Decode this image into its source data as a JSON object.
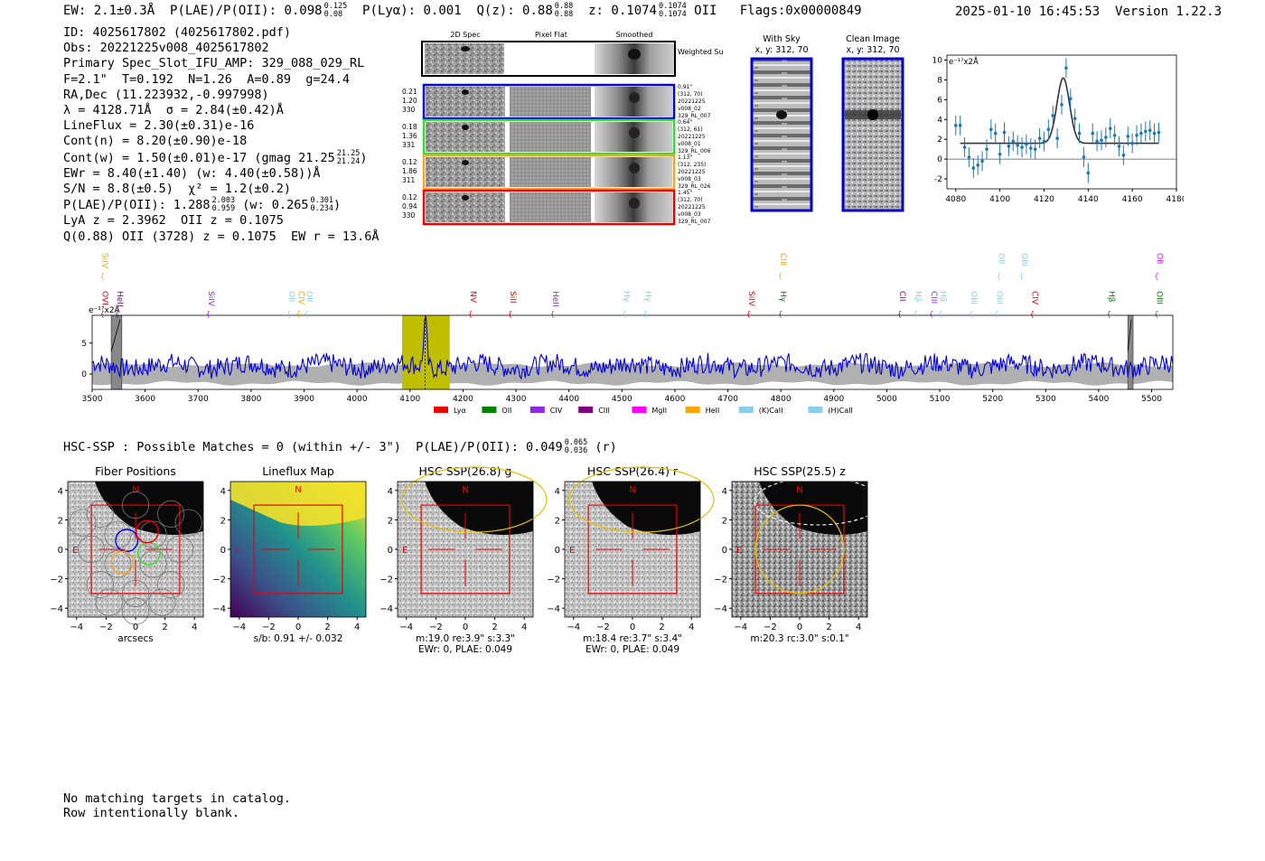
{
  "header": {
    "ew": "EW: 2.1±0.3Å",
    "plae_label": "P(LAE)/P(OII): 0.098",
    "plae_sup": "0.125",
    "plae_sub": "0.08",
    "plya": "P(Lyα): 0.001",
    "qz_label": "Q(z): 0.88",
    "qz_sup": "0.88",
    "qz_sub": "0.88",
    "z_label": "z: 0.1074",
    "z_sup": "0.1074",
    "z_sub": "0.1074",
    "z_line": "OII",
    "flags": "Flags:0x00000849",
    "timestamp": "2025-01-10 16:45:53",
    "version": "Version 1.22.3"
  },
  "info": {
    "id": "ID: 4025617802 (4025617802.pdf)",
    "obs": "Obs: 20221225v008_4025617802",
    "primary": "Primary Spec_Slot_IFU_AMP: 329_088_029_RL",
    "fit": "F=2.1\"  T=0.192  N=1.26  A=0.89  g=24.4",
    "radec": "RA,Dec (11.223932,-0.997998)",
    "lambda": "λ = 4128.71Å  σ = 2.84(±0.42)Å",
    "lineflux": "LineFlux = 2.30(±0.31)e-16",
    "contn": "Cont(n) = 8.20(±0.90)e-18",
    "contw": "Cont(w) = 1.50(±0.01)e-17 (gmag 21.25",
    "contw_sup": "21.25",
    "contw_sub": "21.24",
    "contw_end": ")",
    "ewr": "EWr = 8.40(±1.40) (w: 4.40(±0.58))Å",
    "sn": "S/N = 8.8(±0.5)  χ² = 1.2(±0.2)",
    "plae": "P(LAE)/P(OII): 1.288",
    "plae_sup": "2.003",
    "plae_sub": "0.959",
    "plae_w": "(w: 0.265",
    "plae_w_sup": "0.301",
    "plae_w_sub": "0.234",
    "plae_w_end": ")",
    "lya": "LyA z = 2.3962  OII z = 0.1075",
    "q": "Q(0.88) OII (3728) z = 0.1075  EW r = 13.6Å"
  },
  "cutouts": {
    "col_titles": [
      "2D Spec",
      "Pixel Flat",
      "Smoothed"
    ],
    "weighted_label": "Weighted Sum",
    "rows": [
      {
        "left": [
          "0.21",
          "1.20",
          "330"
        ],
        "right": [
          "0.91\"",
          "(312, 70)",
          "20221225",
          "v008_02",
          "329_RL_007"
        ],
        "color": "#0000ee"
      },
      {
        "left": [
          "0.18",
          "1.36",
          "331"
        ],
        "right": [
          "0.64\"",
          "(312, 61)",
          "20221225",
          "v008_01",
          "329_RL_006"
        ],
        "color": "#33dd33"
      },
      {
        "left": [
          "0.12",
          "1.86",
          "311"
        ],
        "right": [
          "1.13\"",
          "(312, 235)",
          "20221225",
          "v008_03",
          "329_RL_026"
        ],
        "color": "#f5a623"
      },
      {
        "left": [
          "0.12",
          "0.94",
          "330"
        ],
        "right": [
          "1.45\"",
          "(312, 70)",
          "20221225",
          "v008_03",
          "329_RL_007"
        ],
        "color": "#ee0000"
      }
    ]
  },
  "sky_panels": {
    "with_sky": {
      "title": "With Sky",
      "subtitle": "x, y: 312, 70"
    },
    "clean": {
      "title": "Clean Image",
      "subtitle": "x, y: 312, 70"
    }
  },
  "legend": {
    "items": [
      {
        "label": "Lyα",
        "color": "#ee0000"
      },
      {
        "label": "OII",
        "color": "#008000"
      },
      {
        "label": "CIV",
        "color": "#8a2be2"
      },
      {
        "label": "CIII",
        "color": "#800080"
      },
      {
        "label": "MgII",
        "color": "#ff00ff"
      },
      {
        "label": "HeII",
        "color": "#ffa500"
      },
      {
        "label": "(K)CaII",
        "color": "#87ceeb"
      },
      {
        "label": "(H)CaII",
        "color": "#87ceeb"
      }
    ]
  },
  "line_markers": [
    {
      "label": "OVI",
      "x": 3520,
      "color": "#ee0000",
      "row": 2
    },
    {
      "label": "HeII",
      "x": 3548,
      "color": "#800080",
      "row": 2
    },
    {
      "label": "SiIV",
      "x": 3520,
      "color": "#ffa500",
      "row": 1
    },
    {
      "label": "SiIV",
      "x": 3720,
      "color": "#8a2be2",
      "row": 2
    },
    {
      "label": "OII",
      "x": 3872,
      "color": "#87ceeb",
      "row": 2
    },
    {
      "label": "CIV",
      "x": 3890,
      "color": "#ffa500",
      "row": 2
    },
    {
      "label": "OII",
      "x": 3905,
      "color": "#87ceeb",
      "row": 2
    },
    {
      "label": "NV",
      "x": 4215,
      "color": "#ee0000",
      "row": 2
    },
    {
      "label": "SiII",
      "x": 4290,
      "color": "#ee0000",
      "row": 2
    },
    {
      "label": "HeII",
      "x": 4370,
      "color": "#8a2be2",
      "row": 2
    },
    {
      "label": "Hγ",
      "x": 4505,
      "color": "#87ceeb",
      "row": 2
    },
    {
      "label": "Hγ",
      "x": 4545,
      "color": "#87ceeb",
      "row": 2
    },
    {
      "label": "SiIV",
      "x": 4740,
      "color": "#ee0000",
      "row": 2
    },
    {
      "label": "Hγ",
      "x": 4800,
      "color": "#008000",
      "row": 2
    },
    {
      "label": "CIII",
      "x": 4800,
      "color": "#ffa500",
      "row": 1
    },
    {
      "label": "CII",
      "x": 5025,
      "color": "#800080",
      "row": 2
    },
    {
      "label": "Hβ",
      "x": 5055,
      "color": "#87ceeb",
      "row": 2
    },
    {
      "label": "CIII",
      "x": 5085,
      "color": "#8a2be2",
      "row": 2
    },
    {
      "label": "Hβ",
      "x": 5102,
      "color": "#87ceeb",
      "row": 2
    },
    {
      "label": "OIII",
      "x": 5160,
      "color": "#87ceeb",
      "row": 2
    },
    {
      "label": "OIII",
      "x": 5208,
      "color": "#87ceeb",
      "row": 2
    },
    {
      "label": "OII",
      "x": 5212,
      "color": "#87ceeb",
      "row": 1
    },
    {
      "label": "OIII",
      "x": 5255,
      "color": "#87ceeb",
      "row": 1
    },
    {
      "label": "CIV",
      "x": 5275,
      "color": "#ee0000",
      "row": 2
    },
    {
      "label": "Hβ",
      "x": 5420,
      "color": "#008000",
      "row": 2
    },
    {
      "label": "OII",
      "x": 5510,
      "color": "#ff00ff",
      "row": 1
    },
    {
      "label": "OIII",
      "x": 5510,
      "color": "#008000",
      "row": 2
    }
  ],
  "hsc": {
    "summary": "HSC-SSP : Possible Matches = 0 (within +/- 3\")  P(LAE)/P(OII): 0.049",
    "summary_sup": "0.065",
    "summary_sub": "0.036",
    "summary_end": "(r)"
  },
  "panels": [
    {
      "title": "Fiber Positions",
      "xlabel": "arcsecs",
      "lines": []
    },
    {
      "title": "Lineflux Map",
      "xlabel": "s/b: 0.91 +/- 0.032",
      "lines": []
    },
    {
      "title": "HSC SSP(26.8) g",
      "xlabel": "",
      "lines": [
        "m:19.0  re:3.9\"  s:3.3\"",
        "EWr: 0, PLAE: 0.049"
      ]
    },
    {
      "title": "HSC SSP(26.4) r",
      "xlabel": "",
      "lines": [
        "m:18.4  re:3.7\"  s:3.4\"",
        "EWr: 0, PLAE: 0.049"
      ]
    },
    {
      "title": "HSC SSP(25.5) z",
      "xlabel": "",
      "lines": [
        "m:20.3 rc:3.0\"  s:0.1\""
      ]
    }
  ],
  "panel_ticks": {
    "x": [
      "−4",
      "−2",
      "0",
      "2",
      "4"
    ],
    "y": [
      "4",
      "2",
      "0",
      "−2",
      "−4"
    ]
  },
  "panel_compass": {
    "north": "N",
    "east": "E"
  },
  "chart_data": [
    {
      "type": "line",
      "name": "fit-spectrum",
      "ylabel": "e⁻¹⁷x2Å",
      "xlim": [
        4076,
        4180
      ],
      "ylim": [
        -3,
        10.5
      ],
      "xticks": [
        4080,
        4100,
        4120,
        4140,
        4160,
        4180
      ],
      "yticks": [
        -2,
        0,
        2,
        4,
        6,
        8,
        10
      ],
      "points": {
        "x": [
          4080,
          4082,
          4084,
          4086,
          4088,
          4090,
          4092,
          4094,
          4096,
          4098,
          4100,
          4102,
          4104,
          4106,
          4108,
          4110,
          4112,
          4114,
          4116,
          4118,
          4120,
          4122,
          4124,
          4126,
          4128,
          4130,
          4132,
          4134,
          4136,
          4138,
          4140,
          4142,
          4144,
          4146,
          4148,
          4150,
          4152,
          4154,
          4156,
          4158,
          4160,
          4162,
          4164,
          4166,
          4168,
          4170,
          4172
        ],
        "y": [
          3.4,
          3.4,
          1.2,
          0.2,
          -0.9,
          -0.6,
          -0.2,
          1.0,
          3.0,
          2.6,
          0.5,
          2.7,
          1.3,
          1.8,
          1.4,
          1.2,
          1.5,
          1.1,
          1.0,
          2.1,
          1.8,
          3.0,
          4.4,
          2.1,
          5.5,
          9.2,
          6.1,
          4.1,
          2.6,
          0.2,
          -1.4,
          2.6,
          1.8,
          1.9,
          2.2,
          3.1,
          2.4,
          1.3,
          0.4,
          2.3,
          1.6,
          2.4,
          2.6,
          2.8,
          2.9,
          2.6,
          2.7
        ],
        "err": [
          1.0,
          1.0,
          1.0,
          1.0,
          1.0,
          1.0,
          1.0,
          1.0,
          1.0,
          1.0,
          1.0,
          1.0,
          1.0,
          1.0,
          1.0,
          1.0,
          1.0,
          1.0,
          1.0,
          1.0,
          1.0,
          1.0,
          1.0,
          1.0,
          1.0,
          1.0,
          1.0,
          1.0,
          1.0,
          1.0,
          1.0,
          1.0,
          1.0,
          1.0,
          1.0,
          1.0,
          1.0,
          1.0,
          1.0,
          1.0,
          1.0,
          1.0,
          1.0,
          1.0,
          1.0,
          1.0,
          1.0
        ]
      },
      "model": {
        "continuum": 1.6,
        "amplitude": 6.6,
        "center": 4128.7,
        "sigma": 2.84,
        "x_range": [
          4082,
          4172
        ]
      },
      "colors": {
        "points": "#1f77b4",
        "model": "#333333"
      }
    },
    {
      "type": "line",
      "name": "full-spectrum",
      "ylabel": "e⁻¹⁷x2Å",
      "xlim": [
        3500,
        5540
      ],
      "ylim": [
        -2.5,
        9.5
      ],
      "xticks": [
        3500,
        3600,
        3700,
        3800,
        3900,
        4000,
        4100,
        4200,
        4300,
        4400,
        4500,
        4600,
        4700,
        4800,
        4900,
        5000,
        5100,
        5200,
        5300,
        5400,
        5500
      ],
      "yticks": [
        0,
        5
      ],
      "highlight_range": [
        4085,
        4175
      ],
      "emission_line": {
        "x": 4128.7,
        "peak": 7.8
      },
      "masked_ranges": [
        [
          3536,
          3556
        ],
        [
          5455,
          5465
        ]
      ],
      "line_color": "#0000dd",
      "noise_color": "#b0b0b0",
      "highlight_color": "#bfbf00"
    }
  ]
}
